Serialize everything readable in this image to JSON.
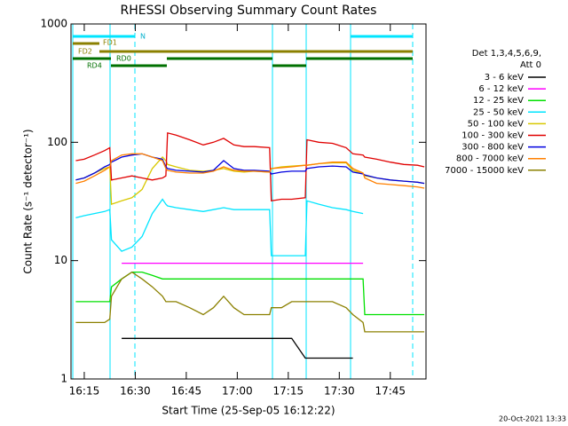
{
  "chart_data": {
    "type": "line",
    "title": "RHESSI Observing Summary Count Rates",
    "xlabel": "Start Time (25-Sep-05 16:12:22)",
    "ylabel": "Count Rate (s⁻¹ detector⁻¹)",
    "legend_title": [
      "Det 1,3,4,5,6,9,",
      "Att 0"
    ],
    "annotations": [
      "N",
      "FD1",
      "FD2",
      "RD0",
      "RD4"
    ],
    "footer": "20-Oct-2021 13:33",
    "log_y": true,
    "legend": "right",
    "xlim": [
      11.1,
      115.5
    ],
    "ylim": [
      1,
      1000
    ],
    "yticks": [
      1,
      10,
      100,
      1000
    ],
    "xticks": [
      {
        "value": 15,
        "label": "16:15"
      },
      {
        "value": 30,
        "label": "16:30"
      },
      {
        "value": 45,
        "label": "16:45"
      },
      {
        "value": 60,
        "label": "17:00"
      },
      {
        "value": 75,
        "label": "17:15"
      },
      {
        "value": 90,
        "label": "17:30"
      },
      {
        "value": 105,
        "label": "17:45"
      }
    ],
    "x": [
      12.5,
      15,
      18,
      21,
      22.5,
      23,
      26,
      29,
      32,
      35,
      38,
      39,
      39.5,
      42,
      46,
      50,
      53,
      56,
      59,
      62,
      65,
      69.5,
      70,
      73,
      76,
      80,
      80.5,
      84,
      88,
      92,
      94,
      97,
      97.5,
      101,
      105,
      109,
      113,
      115
    ],
    "series": [
      {
        "name": "3 - 6 keV",
        "color": "#000000",
        "values": [
          null,
          null,
          null,
          null,
          null,
          null,
          2.2,
          2.2,
          2.2,
          2.2,
          2.2,
          2.2,
          2.2,
          2.2,
          2.2,
          2.2,
          2.2,
          2.2,
          2.2,
          2.2,
          2.2,
          2.2,
          2.2,
          2.2,
          2.2,
          1.5,
          1.5,
          1.5,
          1.5,
          1.5,
          1.5,
          null,
          null,
          null,
          null,
          null,
          null,
          null
        ]
      },
      {
        "name": "6 - 12 keV",
        "color": "#ff00ff",
        "values": [
          null,
          null,
          null,
          null,
          null,
          null,
          9.5,
          9.5,
          9.5,
          9.5,
          9.5,
          9.5,
          9.5,
          9.5,
          9.5,
          9.5,
          9.5,
          9.5,
          9.5,
          9.5,
          9.5,
          9.5,
          9.5,
          9.5,
          9.5,
          9.5,
          9.5,
          9.5,
          9.5,
          9.5,
          9.5,
          9.5,
          null,
          null,
          null,
          null,
          null,
          null
        ]
      },
      {
        "name": "12 - 25 keV",
        "color": "#00e000",
        "values": [
          4.5,
          4.5,
          4.5,
          4.5,
          4.5,
          6,
          7,
          8,
          8,
          7.5,
          7,
          7,
          7,
          7,
          7,
          7,
          7,
          7,
          7,
          7,
          7,
          7,
          7,
          7,
          7,
          7,
          7,
          7,
          7,
          7,
          7,
          7,
          3.5,
          3.5,
          3.5,
          3.5,
          3.5,
          3.5
        ]
      },
      {
        "name": "25 - 50 keV",
        "color": "#00e5ff",
        "values": [
          23,
          24,
          25,
          26,
          27,
          15,
          12,
          13,
          16,
          25,
          33,
          30,
          29,
          28,
          27,
          26,
          27,
          28,
          27,
          27,
          27,
          27,
          11,
          11,
          11,
          11,
          32,
          30,
          28,
          27,
          26,
          25,
          null,
          null,
          null,
          null,
          null,
          null
        ]
      },
      {
        "name": "50 - 100 keV",
        "color": "#d8c800",
        "values": [
          48,
          50,
          55,
          60,
          62,
          30,
          32,
          34,
          40,
          60,
          75,
          70,
          65,
          62,
          58,
          57,
          58,
          60,
          57,
          56,
          57,
          56,
          60,
          62,
          63,
          64,
          64,
          66,
          67,
          67,
          58,
          54,
          52,
          50,
          48,
          47,
          46,
          45
        ]
      },
      {
        "name": "100 - 300 keV",
        "color": "#e00000",
        "values": [
          70,
          72,
          78,
          85,
          90,
          48,
          50,
          52,
          50,
          48,
          50,
          52,
          120,
          115,
          105,
          95,
          100,
          108,
          95,
          92,
          92,
          90,
          32,
          33,
          33,
          34,
          105,
          100,
          98,
          90,
          80,
          78,
          75,
          72,
          68,
          65,
          64,
          62
        ]
      },
      {
        "name": "300 - 800 keV",
        "color": "#0000e0",
        "values": [
          48,
          50,
          55,
          62,
          65,
          68,
          75,
          78,
          80,
          75,
          72,
          62,
          60,
          58,
          57,
          56,
          58,
          70,
          60,
          58,
          58,
          57,
          54,
          56,
          57,
          57,
          60,
          62,
          63,
          62,
          56,
          54,
          53,
          50,
          48,
          47,
          46,
          45
        ]
      },
      {
        "name": "800 - 7000 keV",
        "color": "#ff8000",
        "values": [
          45,
          47,
          52,
          58,
          62,
          70,
          78,
          80,
          80,
          75,
          70,
          60,
          58,
          56,
          55,
          55,
          57,
          62,
          58,
          57,
          57,
          56,
          60,
          61,
          62,
          64,
          64,
          66,
          68,
          68,
          60,
          55,
          50,
          45,
          44,
          43,
          42,
          41
        ]
      },
      {
        "name": "7000 - 15000 keV",
        "color": "#8b8000",
        "values": [
          3,
          3,
          3,
          3,
          3.2,
          5,
          7,
          8,
          7,
          6,
          5,
          4.5,
          4.5,
          4.5,
          4,
          3.5,
          4,
          5,
          4,
          3.5,
          3.5,
          3.5,
          4,
          4,
          4.5,
          4.5,
          4.5,
          4.5,
          4.5,
          4,
          3.5,
          3,
          2.5,
          2.5,
          2.5,
          2.5,
          2.5,
          2.5
        ]
      }
    ]
  }
}
